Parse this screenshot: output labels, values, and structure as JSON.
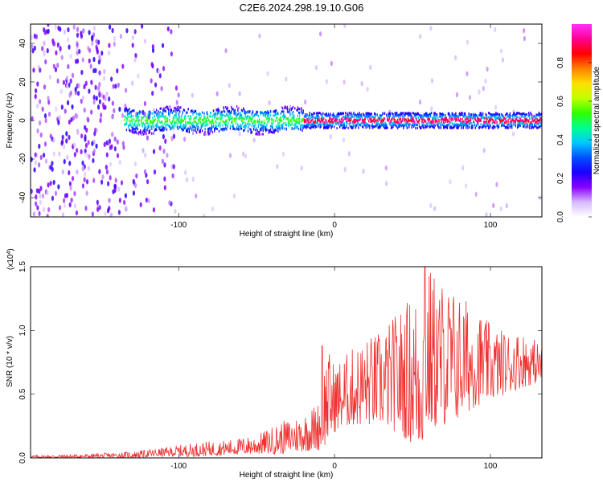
{
  "title": "C2E6.2024.298.19.10.G06",
  "colors": {
    "background": "#ffffff",
    "snr_line": "#ee3030",
    "axis": "#000000"
  },
  "chart_data": [
    {
      "type": "heatmap",
      "xlabel": "Height of straight line (km)",
      "ylabel": "Frequency (Hz)",
      "xlim": [
        -195,
        133
      ],
      "ylim": [
        -50,
        50
      ],
      "x_ticks": [
        -100,
        0,
        100
      ],
      "x_tick_labels": [
        "-100",
        "0",
        "100"
      ],
      "y_ticks": [
        -40,
        -20,
        0,
        20,
        40
      ],
      "y_tick_labels": [
        "-40",
        "-20",
        "0",
        "20",
        "40"
      ],
      "colorbar": {
        "label": "Normalized spectral amplitude",
        "range": [
          0,
          1
        ],
        "ticks": [
          0.0,
          0.2,
          0.4,
          0.6,
          0.8
        ],
        "tick_labels": [
          "0.0",
          "0.2",
          "0.4",
          "0.6",
          "0.8"
        ],
        "colormap": [
          "#ffffff",
          "#d8b8ff",
          "#8a00ff",
          "#1a00ff",
          "#0050ff",
          "#00c8ff",
          "#00ff90",
          "#30ff00",
          "#c0ff00",
          "#ffe000",
          "#ff8000",
          "#ff0000",
          "#ff0090",
          "#ff30ff"
        ]
      },
      "grid": false,
      "description_regions": {
        "diffuse_noise_x_range": [
          -195,
          -100
        ],
        "signal_band_start_x": -135,
        "signal_center_freq": 0,
        "strong_signal_start_x": -20
      }
    },
    {
      "type": "line",
      "xlabel": "Height of straight line (km)",
      "ylabel": "SNR (10 * v/v)",
      "y_multiplier_label": "(x10",
      "y_multiplier_exp": "4",
      "xlim": [
        -195,
        133
      ],
      "ylim": [
        0,
        1.5
      ],
      "x_ticks": [
        -100,
        0,
        100
      ],
      "x_tick_labels": [
        "-100",
        "0",
        "100"
      ],
      "y_ticks": [
        0.0,
        0.5,
        1.0,
        1.5
      ],
      "y_tick_labels": [
        "0.0",
        "0.5",
        "1.0",
        "1.5"
      ],
      "series": [
        {
          "color": "#ee3030",
          "envelope": {
            "x": [
              -195,
              -160,
              -130,
              -110,
              -90,
              -70,
              -50,
              -35,
              -20,
              -10,
              -5,
              0,
              10,
              20,
              30,
              40,
              50,
              55,
              60,
              70,
              80,
              90,
              100,
              110,
              120,
              133
            ],
            "y_min": [
              0.0,
              0.0,
              0.0,
              0.01,
              0.01,
              0.02,
              0.03,
              0.03,
              0.05,
              0.06,
              0.1,
              0.2,
              0.25,
              0.25,
              0.25,
              0.2,
              0.1,
              0.05,
              0.2,
              0.25,
              0.3,
              0.4,
              0.45,
              0.5,
              0.55,
              0.6
            ],
            "y_max": [
              0.02,
              0.03,
              0.05,
              0.08,
              0.12,
              0.14,
              0.18,
              0.28,
              0.35,
              0.45,
              0.88,
              0.75,
              0.85,
              0.95,
              1.0,
              1.15,
              1.3,
              1.35,
              1.52,
              1.4,
              1.3,
              1.2,
              1.05,
              1.0,
              1.0,
              0.9
            ]
          },
          "notable_peaks": [
            {
              "x": -8,
              "y": 0.88
            },
            {
              "x": 58,
              "y": 1.52
            }
          ]
        }
      ],
      "grid": false
    }
  ]
}
